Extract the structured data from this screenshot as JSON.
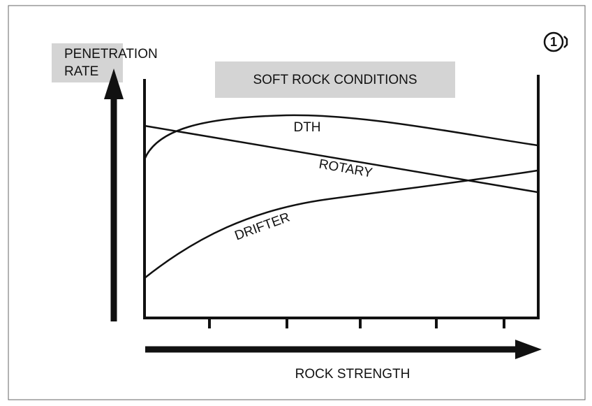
{
  "y_axis_label": [
    "PENETRATION",
    "RATE"
  ],
  "condition_label": "SOFT ROCK CONDITIONS",
  "curves": [
    {
      "label": "DTH"
    },
    {
      "label": "ROTARY"
    },
    {
      "label": "DRIFTER"
    }
  ],
  "x_axis_label": "ROCK STRENGTH",
  "marker": "1"
}
